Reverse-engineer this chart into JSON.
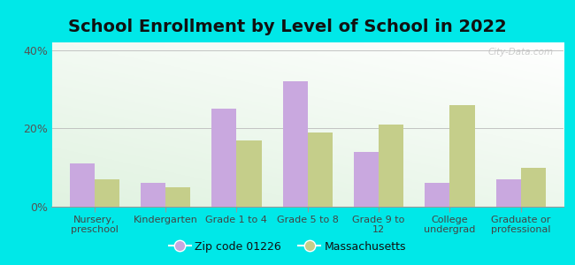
{
  "title": "School Enrollment by Level of School in 2022",
  "categories": [
    "Nursery,\npreschool",
    "Kindergarten",
    "Grade 1 to 4",
    "Grade 5 to 8",
    "Grade 9 to\n12",
    "College\nundergrad",
    "Graduate or\nprofessional"
  ],
  "zipcode_values": [
    11,
    6,
    25,
    32,
    14,
    6,
    7
  ],
  "massachusetts_values": [
    7,
    5,
    17,
    19,
    21,
    26,
    10
  ],
  "zipcode_color": "#c9a8df",
  "massachusetts_color": "#c5ce8a",
  "background_color": "#00e8e8",
  "title_fontsize": 14,
  "ylabel_ticks": [
    "0%",
    "20%",
    "40%"
  ],
  "yticks": [
    0,
    20,
    40
  ],
  "ylim": [
    0,
    42
  ],
  "legend_label_zip": "Zip code 01226",
  "legend_label_ma": "Massachusetts",
  "watermark": "City-Data.com",
  "bar_width": 0.35
}
